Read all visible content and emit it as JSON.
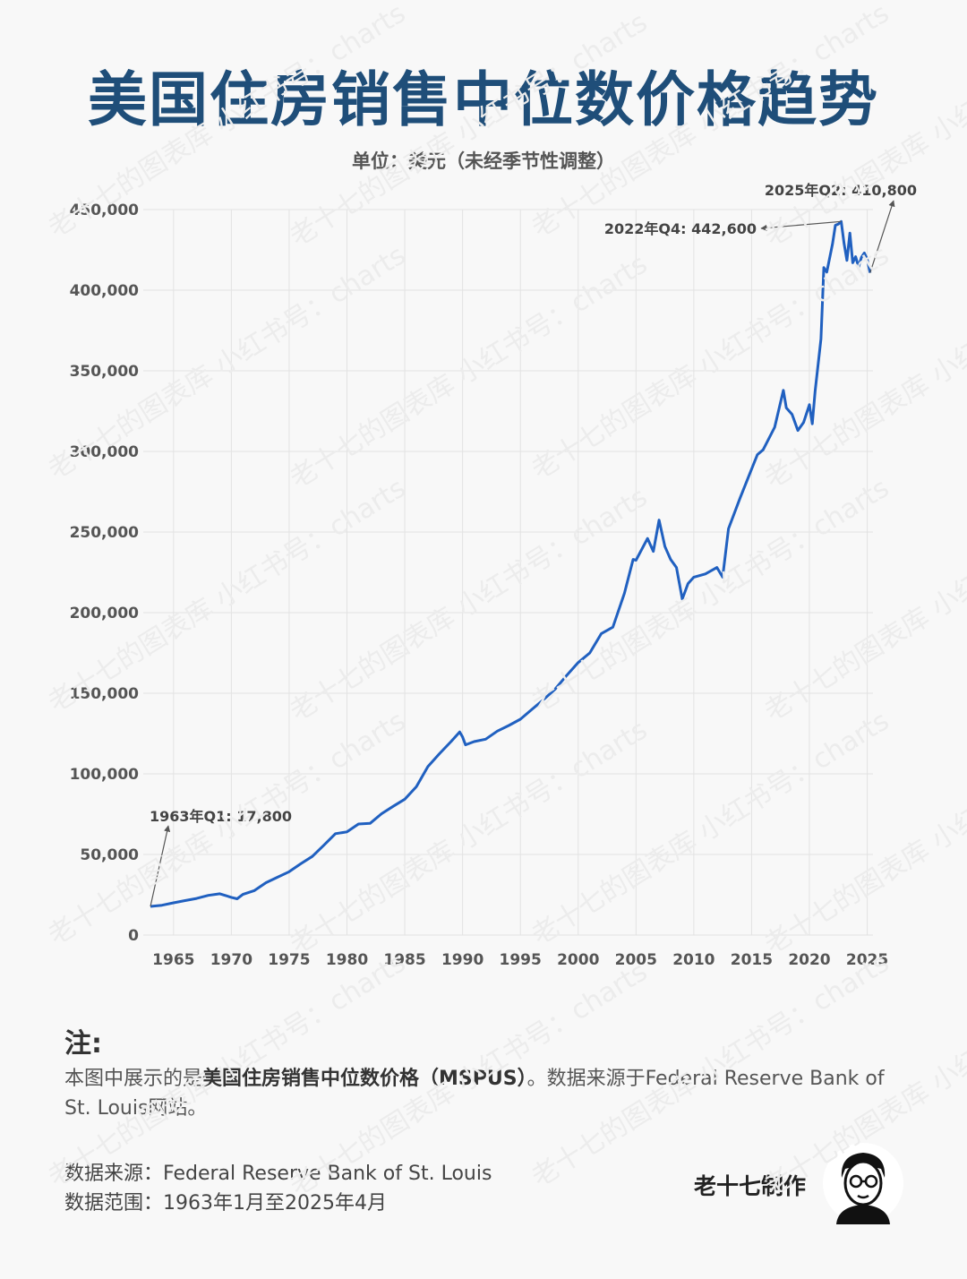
{
  "title": "美国住房销售中位数价格趋势",
  "subtitle": "单位：美元（未经季节性调整）",
  "chart_data": {
    "type": "line",
    "title": "美国住房销售中位数价格趋势",
    "subtitle": "单位：美元（未经季节性调整）",
    "xlim": [
      1963,
      2025.5
    ],
    "ylim": [
      0,
      450000
    ],
    "yticks": [
      0,
      50000,
      100000,
      150000,
      200000,
      250000,
      300000,
      350000,
      400000,
      450000
    ],
    "ytick_labels": [
      "0",
      "50,000",
      "100,000",
      "150,000",
      "200,000",
      "250,000",
      "300,000",
      "350,000",
      "400,000",
      "450,000"
    ],
    "xticks": [
      1965,
      1970,
      1975,
      1980,
      1985,
      1990,
      1995,
      2000,
      2005,
      2010,
      2015,
      2020,
      2025
    ],
    "xtick_labels": [
      "1965",
      "1970",
      "1975",
      "1980",
      "1985",
      "1990",
      "1995",
      "2000",
      "2005",
      "2010",
      "2015",
      "2020",
      "2025"
    ],
    "grid": true,
    "series": [
      {
        "color": "#2060c0",
        "points": [
          [
            1963.0,
            17800
          ],
          [
            1964.0,
            18500
          ],
          [
            1965.0,
            20000
          ],
          [
            1966.0,
            21400
          ],
          [
            1967.0,
            22700
          ],
          [
            1968.0,
            24600
          ],
          [
            1969.0,
            25600
          ],
          [
            1970.0,
            23400
          ],
          [
            1970.5,
            22500
          ],
          [
            1971.0,
            25200
          ],
          [
            1972.0,
            27600
          ],
          [
            1973.0,
            32500
          ],
          [
            1974.0,
            35900
          ],
          [
            1975.0,
            39300
          ],
          [
            1976.0,
            44200
          ],
          [
            1977.0,
            48800
          ],
          [
            1978.0,
            55700
          ],
          [
            1979.0,
            62900
          ],
          [
            1980.0,
            64000
          ],
          [
            1981.0,
            68900
          ],
          [
            1982.0,
            69300
          ],
          [
            1983.0,
            75300
          ],
          [
            1984.0,
            79900
          ],
          [
            1985.0,
            84300
          ],
          [
            1986.0,
            92000
          ],
          [
            1987.0,
            104500
          ],
          [
            1988.0,
            112500
          ],
          [
            1989.0,
            120000
          ],
          [
            1989.75,
            126000
          ],
          [
            1990.0,
            122900
          ],
          [
            1990.25,
            118000
          ],
          [
            1991.0,
            120000
          ],
          [
            1992.0,
            121500
          ],
          [
            1993.0,
            126500
          ],
          [
            1994.0,
            130000
          ],
          [
            1995.0,
            133900
          ],
          [
            1996.0,
            140000
          ],
          [
            1997.0,
            146000
          ],
          [
            1998.0,
            152500
          ],
          [
            1999.0,
            161000
          ],
          [
            2000.0,
            169000
          ],
          [
            2001.0,
            175000
          ],
          [
            2002.0,
            187000
          ],
          [
            2003.0,
            191000
          ],
          [
            2004.0,
            212000
          ],
          [
            2004.75,
            233000
          ],
          [
            2005.0,
            232500
          ],
          [
            2006.0,
            246000
          ],
          [
            2006.5,
            238000
          ],
          [
            2007.0,
            257400
          ],
          [
            2007.5,
            241000
          ],
          [
            2008.0,
            233000
          ],
          [
            2008.5,
            228000
          ],
          [
            2009.0,
            208400
          ],
          [
            2009.5,
            218000
          ],
          [
            2010.0,
            222000
          ],
          [
            2011.0,
            224000
          ],
          [
            2012.0,
            228000
          ],
          [
            2012.5,
            222000
          ],
          [
            2013.0,
            252000
          ],
          [
            2014.0,
            271000
          ],
          [
            2015.0,
            289000
          ],
          [
            2015.5,
            298000
          ],
          [
            2016.0,
            301000
          ],
          [
            2017.0,
            315000
          ],
          [
            2017.75,
            337900
          ],
          [
            2018.0,
            327000
          ],
          [
            2018.5,
            323000
          ],
          [
            2019.0,
            313000
          ],
          [
            2019.5,
            318000
          ],
          [
            2020.0,
            329000
          ],
          [
            2020.25,
            317100
          ],
          [
            2020.5,
            337500
          ],
          [
            2021.0,
            369800
          ],
          [
            2021.25,
            414000
          ],
          [
            2021.5,
            411200
          ],
          [
            2022.0,
            428700
          ],
          [
            2022.25,
            440300
          ],
          [
            2022.5,
            441000
          ],
          [
            2022.75,
            442600
          ],
          [
            2023.0,
            429000
          ],
          [
            2023.25,
            418500
          ],
          [
            2023.5,
            435400
          ],
          [
            2023.75,
            417000
          ],
          [
            2024.0,
            420800
          ],
          [
            2024.25,
            414500
          ],
          [
            2024.5,
            420400
          ],
          [
            2024.75,
            423100
          ],
          [
            2025.0,
            419300
          ],
          [
            2025.25,
            410800
          ]
        ]
      }
    ],
    "annotations": [
      {
        "text": "1963年Q1: 17,800",
        "x": 1963.0,
        "y": 17800
      },
      {
        "text": "2022年Q4: 442,600",
        "x": 2022.75,
        "y": 442600
      },
      {
        "text": "2025年Q2: 410,800",
        "x": 2025.25,
        "y": 410800
      }
    ]
  },
  "notes": {
    "heading": "注:",
    "text_before": "本图中展示的是",
    "text_bold": "美国住房销售中位数价格（MSPUS）",
    "text_after": "。数据来源于Federal Reserve Bank of St. Louis网站。"
  },
  "source_line": "数据来源：Federal Reserve Bank of St. Louis",
  "range_line": "数据范围：1963年1月至2025年4月",
  "author": "老十七制作",
  "watermark": "老十七的图表库 小红书号：charts"
}
